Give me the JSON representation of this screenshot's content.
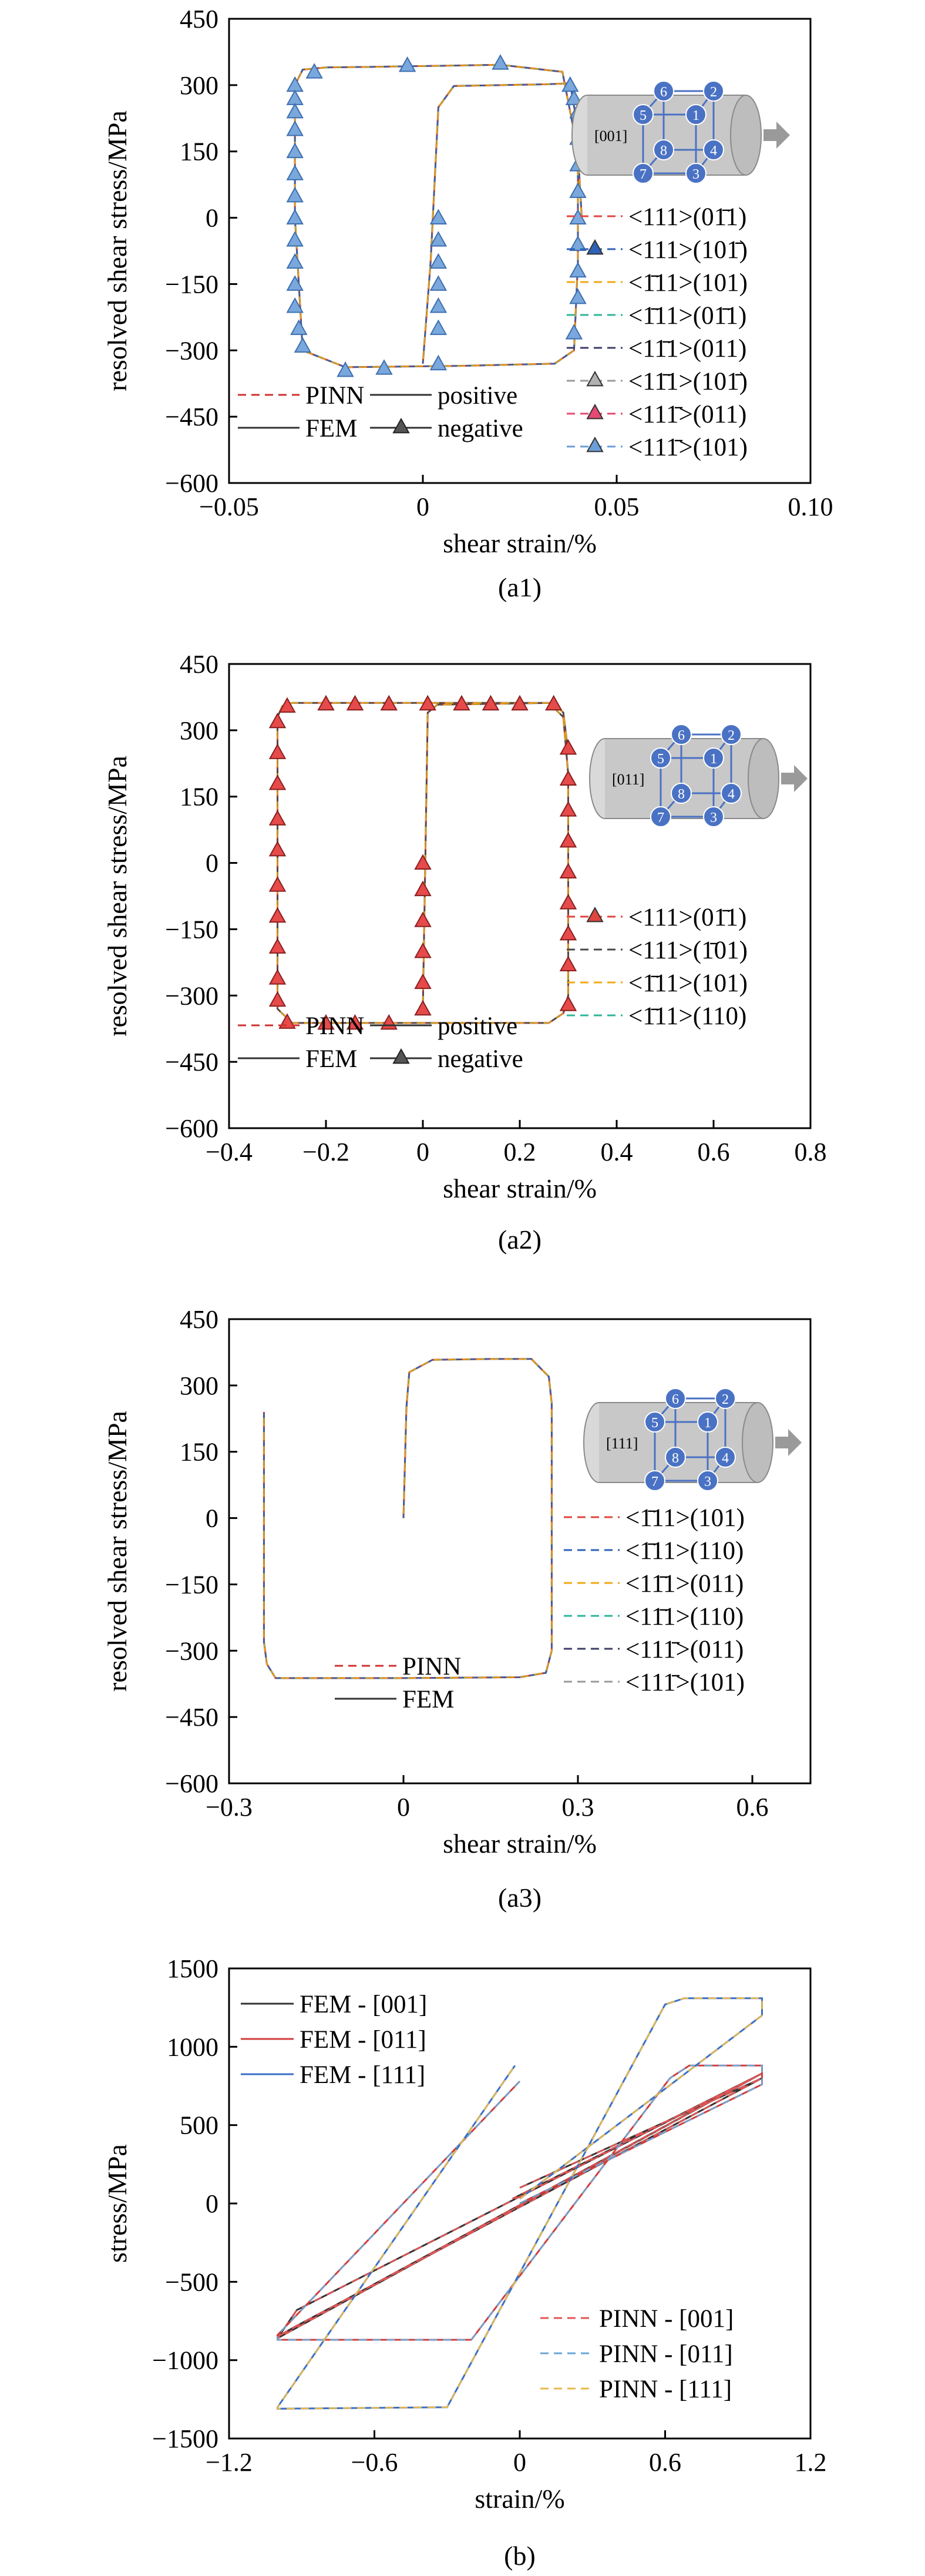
{
  "colors": {
    "slip_set_a": [
      "#e0453e",
      "#2e62b8",
      "#f2a916",
      "#2fb59a",
      "#3c3c6a",
      "#9a9a9a",
      "#e64a74",
      "#6b9ed8"
    ],
    "slip_set_b": [
      "#e0453e",
      "#4a4a4a",
      "#f2a916",
      "#2fb59a"
    ],
    "slip_set_c": [
      "#e0453e",
      "#2e62b8",
      "#f2a916",
      "#2fb59a",
      "#3c3c6a",
      "#9a9a9a"
    ],
    "fem_line": "#333333",
    "pinn_dash": "#d03030",
    "node_fill": "#4a72c4",
    "cylinder": "#c8c8c8"
  },
  "chart_data": [
    {
      "type": "line",
      "caption": "(a1)",
      "xlabel": "shear strain/%",
      "ylabel": "resolved shear stress/MPa",
      "xlim": [
        -0.05,
        0.1
      ],
      "ylim": [
        -600,
        450
      ],
      "xticks": [
        -0.05,
        0,
        0.05,
        0.1
      ],
      "xtick_labels": [
        "−0.05",
        "0",
        "0.05",
        "0.10"
      ],
      "yticks": [
        -600,
        -450,
        -300,
        -150,
        0,
        150,
        300,
        450
      ],
      "ytick_labels": [
        "−600",
        "−450",
        "−300",
        "−150",
        "0",
        "150",
        "300",
        "450"
      ],
      "inset_direction": "[001]",
      "inset_nodes": [
        "1",
        "2",
        "3",
        "4",
        "5",
        "6",
        "7",
        "8"
      ],
      "loop": {
        "x": [
          0,
          0.002,
          0.004,
          0.008,
          0.02,
          0.032,
          0.038,
          0.04,
          0.04,
          0.039,
          0.034,
          0.01,
          -0.02,
          -0.031,
          -0.033,
          -0.033,
          -0.031,
          -0.025,
          -0.008,
          0.02,
          0.036,
          0.04,
          0.041
        ],
        "y": [
          -330,
          -100,
          250,
          298,
          300,
          302,
          304,
          200,
          -100,
          -300,
          -330,
          -335,
          -338,
          -300,
          0,
          300,
          335,
          340,
          342,
          346,
          330,
          150,
          0
        ]
      },
      "marker_x": [
        -0.033,
        -0.033,
        -0.033,
        -0.033,
        -0.033,
        -0.033,
        -0.033,
        -0.033,
        -0.033,
        -0.033,
        -0.033,
        -0.033,
        -0.032,
        -0.031,
        -0.028,
        -0.02,
        -0.01,
        -0.004,
        0.004,
        0.02,
        0.038,
        0.039,
        0.04,
        0.04,
        0.04,
        0.04,
        0.04,
        0.04,
        0.04,
        0.04,
        0.039,
        0.004,
        0.004,
        0.004,
        0.004,
        0.004,
        0.004
      ],
      "marker_y": [
        300,
        270,
        240,
        200,
        150,
        100,
        50,
        0,
        -50,
        -100,
        -150,
        -200,
        -250,
        -290,
        330,
        -345,
        -340,
        345,
        -330,
        350,
        300,
        270,
        240,
        180,
        120,
        60,
        0,
        -60,
        -120,
        -180,
        -260,
        0,
        -50,
        -100,
        -150,
        -200,
        -250
      ],
      "series": [
        {
          "name": "<111>(01̄1)",
          "marker": false
        },
        {
          "name": "<111>(101̄)",
          "marker": true
        },
        {
          "name": "<1̄11>(101)",
          "marker": false
        },
        {
          "name": "<1̄11>(01̄1)",
          "marker": false
        },
        {
          "name": "<11̄1>(011)",
          "marker": false
        },
        {
          "name": "<11̄1>(101̄)",
          "marker": true
        },
        {
          "name": "<111̄>(011)",
          "marker": true
        },
        {
          "name": "<111̄>(101)",
          "marker": true
        }
      ],
      "method_legend": [
        "PINN",
        "FEM",
        "positive",
        "negative"
      ]
    },
    {
      "type": "line",
      "caption": "(a2)",
      "xlabel": "shear strain/%",
      "ylabel": "resolved shear stress/MPa",
      "xlim": [
        -0.4,
        0.8
      ],
      "ylim": [
        -600,
        450
      ],
      "xticks": [
        -0.4,
        -0.2,
        0,
        0.2,
        0.4,
        0.6,
        0.8
      ],
      "xtick_labels": [
        "−0.4",
        "−0.2",
        "0",
        "0.2",
        "0.4",
        "0.6",
        "0.8"
      ],
      "yticks": [
        -600,
        -450,
        -300,
        -150,
        0,
        150,
        300,
        450
      ],
      "ytick_labels": [
        "−600",
        "−450",
        "−300",
        "−150",
        "0",
        "150",
        "300",
        "450"
      ],
      "inset_direction": "[011]",
      "inset_nodes": [
        "1",
        "2",
        "3",
        "4",
        "5",
        "6",
        "7",
        "8"
      ],
      "loop": {
        "x": [
          0,
          0.005,
          0.01,
          0.03,
          0.15,
          0.26,
          0.29,
          0.3,
          0.3,
          0.29,
          0.26,
          0.0,
          -0.27,
          -0.3,
          -0.3,
          -0.29,
          -0.27,
          0.0,
          0.27,
          0.29,
          0.3
        ],
        "y": [
          -330,
          0,
          340,
          358,
          360,
          362,
          330,
          200,
          -300,
          -340,
          -362,
          -362,
          -362,
          -330,
          330,
          355,
          362,
          362,
          362,
          340,
          250
        ]
      },
      "marker_x": [
        -0.3,
        -0.3,
        -0.3,
        -0.3,
        -0.3,
        -0.3,
        -0.3,
        -0.3,
        -0.3,
        -0.3,
        -0.28,
        -0.2,
        -0.14,
        -0.07,
        -0.28,
        -0.2,
        -0.14,
        -0.07,
        0.01,
        0.08,
        0.14,
        0.2,
        0.27,
        0.3,
        0.3,
        0.3,
        0.3,
        0.3,
        0.3,
        0.3,
        0.3,
        0.3,
        0.0,
        0.0,
        0.0,
        0.0,
        0.0,
        0.0
      ],
      "marker_y": [
        320,
        250,
        180,
        100,
        30,
        -50,
        -120,
        -190,
        -260,
        -310,
        355,
        360,
        360,
        360,
        -360,
        -362,
        -362,
        -362,
        360,
        360,
        360,
        360,
        360,
        260,
        190,
        120,
        50,
        -20,
        -90,
        -160,
        -230,
        -320,
        0,
        -60,
        -130,
        -200,
        -270,
        -330
      ],
      "series": [
        {
          "name": "<111>(01̄1)",
          "marker": true
        },
        {
          "name": "<111>(1̄01)",
          "marker": false
        },
        {
          "name": "<1̄11>(101)",
          "marker": false
        },
        {
          "name": "<1̄11>(110)",
          "marker": false
        }
      ],
      "method_legend": [
        "PINN",
        "FEM",
        "positive",
        "negative"
      ]
    },
    {
      "type": "line",
      "caption": "(a3)",
      "xlabel": "shear strain/%",
      "ylabel": "resolved shear stress/MPa",
      "xlim": [
        -0.3,
        0.7
      ],
      "ylim": [
        -600,
        450
      ],
      "xticks": [
        -0.3,
        0,
        0.3,
        0.6
      ],
      "xtick_labels": [
        "−0.3",
        "0",
        "0.3",
        "0.6"
      ],
      "yticks": [
        -600,
        -450,
        -300,
        -150,
        0,
        150,
        300,
        450
      ],
      "ytick_labels": [
        "−600",
        "−450",
        "−300",
        "−150",
        "0",
        "150",
        "300",
        "450"
      ],
      "inset_direction": "[111]",
      "inset_nodes": [
        "1",
        "2",
        "3",
        "4",
        "5",
        "6",
        "7",
        "8"
      ],
      "loop": {
        "x": [
          0,
          0.005,
          0.01,
          0.05,
          0.15,
          0.22,
          0.25,
          0.255,
          0.255,
          0.245,
          0.2,
          0.0,
          -0.2,
          -0.22,
          -0.235,
          -0.24,
          -0.24
        ],
        "y": [
          0,
          250,
          330,
          358,
          360,
          360,
          320,
          260,
          -300,
          -350,
          -360,
          -362,
          -362,
          -362,
          -330,
          -280,
          240
        ]
      },
      "series": [
        {
          "name": "<1̄11>(101)"
        },
        {
          "name": "<1̄11>(110)"
        },
        {
          "name": "<11̄1>(011)"
        },
        {
          "name": "<11̄1>(110)"
        },
        {
          "name": "<111̄>(011)"
        },
        {
          "name": "<111̄>(101)"
        }
      ],
      "method_legend": [
        "PINN",
        "FEM"
      ]
    },
    {
      "type": "line",
      "caption": "(b)",
      "xlabel": "strain/%",
      "ylabel": "stress/MPa",
      "xlim": [
        -1.2,
        1.2
      ],
      "ylim": [
        -1500,
        1500
      ],
      "xticks": [
        -1.2,
        -0.6,
        0,
        0.6,
        1.2
      ],
      "xtick_labels": [
        "−1.2",
        "−0.6",
        "0",
        "0.6",
        "1.2"
      ],
      "yticks": [
        -1500,
        -1000,
        -500,
        0,
        500,
        1000,
        1500
      ],
      "ytick_labels": [
        "−1500",
        "−1000",
        "−500",
        "0",
        "500",
        "1000",
        "1500"
      ],
      "series": [
        {
          "name": "FEM - [001]",
          "color": "#333333",
          "x": [
            0,
            1.0,
            -0.92,
            -1.0,
            1.0,
            -0.92,
            -1.0,
            1.0,
            -0.03
          ],
          "y": [
            100,
            800,
            -780,
            -850,
            830,
            -680,
            -860,
            830,
            30
          ]
        },
        {
          "name": "FEM - [011]",
          "color": "#d23c3c",
          "x": [
            0,
            1.0,
            1.0,
            0.7,
            0.62,
            -0.2,
            -1.0,
            -1.0,
            0.0
          ],
          "y": [
            0,
            760,
            880,
            880,
            800,
            -870,
            -870,
            -840,
            780
          ]
        },
        {
          "name": "FEM - [111]",
          "color": "#3a6fc4",
          "x": [
            0.0,
            1.0,
            1.0,
            0.68,
            0.6,
            -0.3,
            -1.0,
            -1.0,
            -0.02
          ],
          "y": [
            30,
            1200,
            1310,
            1310,
            1270,
            -1300,
            -1310,
            -1300,
            880
          ]
        }
      ],
      "pinn_legend": [
        "PINN - [001]",
        "PINN - [011]",
        "PINN - [111]"
      ],
      "pinn_colors": [
        "#e05555",
        "#6aa6d6",
        "#e8b84a"
      ]
    }
  ]
}
